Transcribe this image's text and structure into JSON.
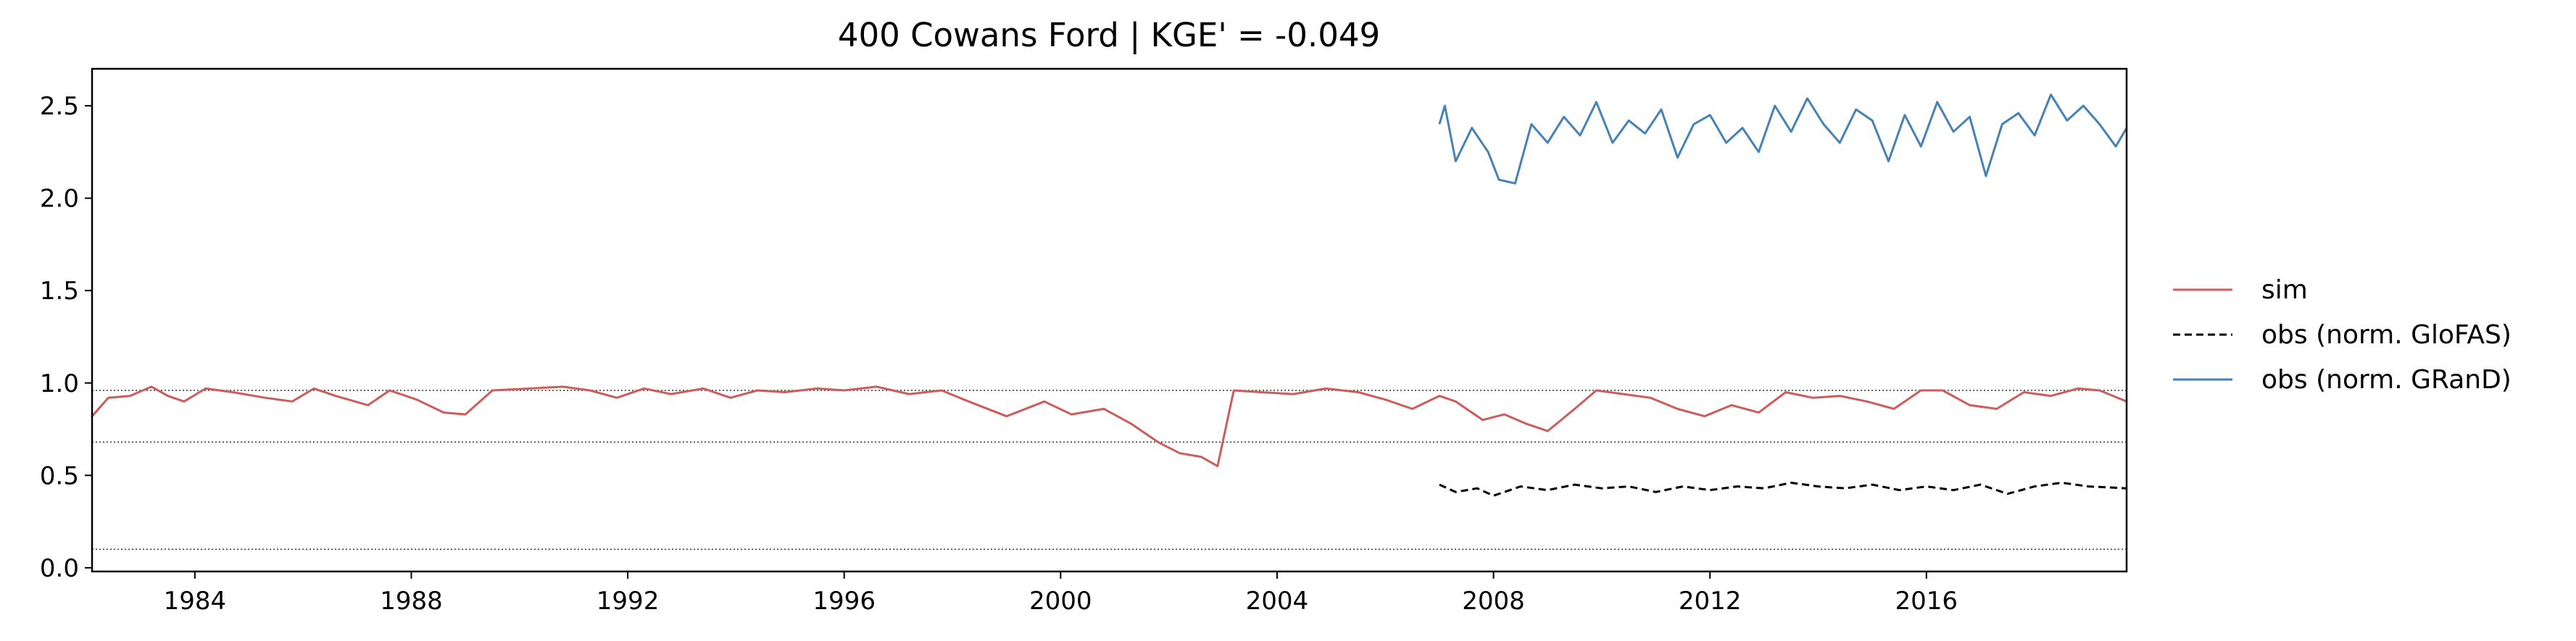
{
  "chart_data": {
    "type": "line",
    "title": "400  Cowans Ford | KGE' = -0.049",
    "xlabel": "",
    "ylabel": "",
    "xlim": [
      1982.1,
      2019.7
    ],
    "ylim": [
      -0.02,
      2.7
    ],
    "x_ticks": [
      1984,
      1988,
      1992,
      1996,
      2000,
      2004,
      2008,
      2012,
      2016
    ],
    "x_tick_labels": [
      "1984",
      "1988",
      "1992",
      "1996",
      "2000",
      "2004",
      "2008",
      "2012",
      "2016"
    ],
    "y_ticks": [
      0.0,
      0.5,
      1.0,
      1.5,
      2.0,
      2.5
    ],
    "y_tick_labels": [
      "0.0",
      "0.5",
      "1.0",
      "1.5",
      "2.0",
      "2.5"
    ],
    "reference_lines": [
      0.96,
      0.68,
      0.1
    ],
    "grid": false,
    "legend": {
      "placement": "right-outside",
      "entries": [
        {
          "name": "sim",
          "color": "#cd5c5c",
          "style": "solid"
        },
        {
          "name": "obs (norm. GloFAS)",
          "color": "#000000",
          "style": "dashed"
        },
        {
          "name": "obs (norm. GRanD)",
          "color": "#4682b4",
          "style": "solid"
        }
      ]
    },
    "series": [
      {
        "name": "sim",
        "color": "#cd5c5c",
        "style": "solid",
        "x": [
          1982.1,
          1982.4,
          1982.8,
          1983.2,
          1983.5,
          1983.8,
          1984.2,
          1984.7,
          1985.3,
          1985.8,
          1986.2,
          1986.6,
          1987.2,
          1987.6,
          1988.1,
          1988.6,
          1989.0,
          1989.5,
          1990.2,
          1990.8,
          1991.3,
          1991.8,
          1992.3,
          1992.8,
          1993.4,
          1993.9,
          1994.4,
          1994.9,
          1995.5,
          1996.0,
          1996.6,
          1997.2,
          1997.8,
          1998.3,
          1999.0,
          1999.7,
          2000.2,
          2000.8,
          2001.3,
          2001.8,
          2002.2,
          2002.6,
          2002.9,
          2003.2,
          2003.7,
          2004.3,
          2004.9,
          2005.5,
          2006.0,
          2006.5,
          2007.0,
          2007.3,
          2007.8,
          2008.2,
          2008.6,
          2009.0,
          2009.5,
          2009.9,
          2010.4,
          2010.9,
          2011.4,
          2011.9,
          2012.4,
          2012.9,
          2013.4,
          2013.9,
          2014.4,
          2014.9,
          2015.4,
          2015.9,
          2016.3,
          2016.8,
          2017.3,
          2017.8,
          2018.3,
          2018.8,
          2019.2,
          2019.7
        ],
        "y": [
          0.82,
          0.92,
          0.93,
          0.98,
          0.93,
          0.9,
          0.97,
          0.95,
          0.92,
          0.9,
          0.97,
          0.93,
          0.88,
          0.96,
          0.91,
          0.84,
          0.83,
          0.96,
          0.97,
          0.98,
          0.96,
          0.92,
          0.97,
          0.94,
          0.97,
          0.92,
          0.96,
          0.95,
          0.97,
          0.96,
          0.98,
          0.94,
          0.96,
          0.9,
          0.82,
          0.9,
          0.83,
          0.86,
          0.78,
          0.68,
          0.62,
          0.6,
          0.55,
          0.96,
          0.95,
          0.94,
          0.97,
          0.95,
          0.91,
          0.86,
          0.93,
          0.9,
          0.8,
          0.83,
          0.78,
          0.74,
          0.86,
          0.96,
          0.94,
          0.92,
          0.86,
          0.82,
          0.88,
          0.84,
          0.95,
          0.92,
          0.93,
          0.9,
          0.86,
          0.96,
          0.96,
          0.88,
          0.86,
          0.95,
          0.93,
          0.97,
          0.96,
          0.9
        ]
      },
      {
        "name": "obs (norm. GloFAS)",
        "color": "#000000",
        "style": "dashed",
        "x": [
          2007.0,
          2007.3,
          2007.7,
          2008.0,
          2008.5,
          2009.0,
          2009.5,
          2010.0,
          2010.5,
          2011.0,
          2011.5,
          2012.0,
          2012.5,
          2013.0,
          2013.5,
          2014.0,
          2014.5,
          2015.0,
          2015.5,
          2016.0,
          2016.5,
          2017.0,
          2017.5,
          2018.0,
          2018.5,
          2019.0,
          2019.7
        ],
        "y": [
          0.45,
          0.41,
          0.43,
          0.39,
          0.44,
          0.42,
          0.45,
          0.43,
          0.44,
          0.41,
          0.44,
          0.42,
          0.44,
          0.43,
          0.46,
          0.44,
          0.43,
          0.45,
          0.42,
          0.44,
          0.42,
          0.45,
          0.4,
          0.44,
          0.46,
          0.44,
          0.43
        ]
      },
      {
        "name": "obs (norm. GRanD)",
        "color": "#4682b4",
        "style": "solid",
        "x": [
          2007.0,
          2007.1,
          2007.3,
          2007.6,
          2007.9,
          2008.1,
          2008.4,
          2008.7,
          2009.0,
          2009.3,
          2009.6,
          2009.9,
          2010.2,
          2010.5,
          2010.8,
          2011.1,
          2011.4,
          2011.7,
          2012.0,
          2012.3,
          2012.6,
          2012.9,
          2013.2,
          2013.5,
          2013.8,
          2014.1,
          2014.4,
          2014.7,
          2015.0,
          2015.3,
          2015.6,
          2015.9,
          2016.2,
          2016.5,
          2016.8,
          2017.1,
          2017.4,
          2017.7,
          2018.0,
          2018.3,
          2018.6,
          2018.9,
          2019.2,
          2019.5,
          2019.7
        ],
        "y": [
          2.4,
          2.5,
          2.2,
          2.38,
          2.25,
          2.1,
          2.08,
          2.4,
          2.3,
          2.44,
          2.34,
          2.52,
          2.3,
          2.42,
          2.35,
          2.48,
          2.22,
          2.4,
          2.45,
          2.3,
          2.38,
          2.25,
          2.5,
          2.36,
          2.54,
          2.4,
          2.3,
          2.48,
          2.42,
          2.2,
          2.45,
          2.28,
          2.52,
          2.36,
          2.44,
          2.12,
          2.4,
          2.46,
          2.34,
          2.56,
          2.42,
          2.5,
          2.4,
          2.28,
          2.38
        ]
      }
    ]
  }
}
